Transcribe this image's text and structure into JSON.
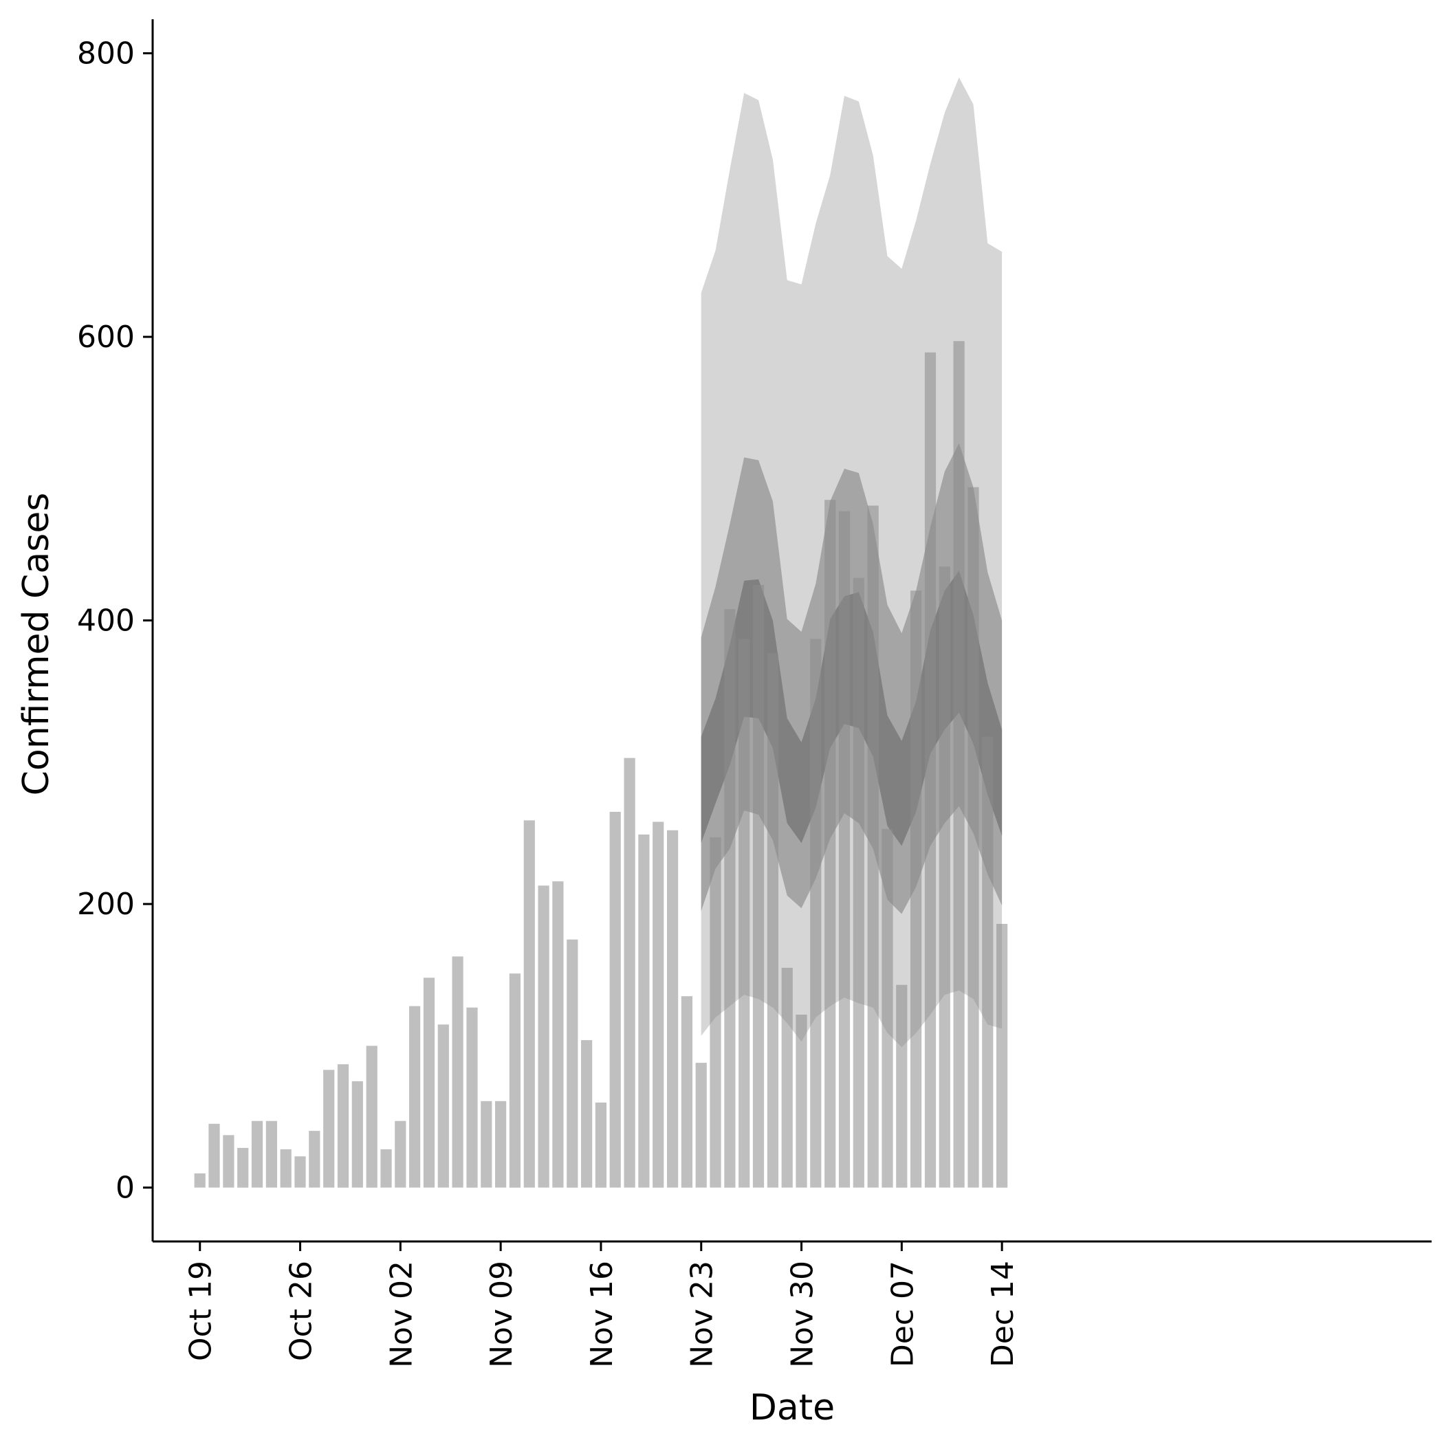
{
  "chart_data": {
    "type": "bar",
    "title": "",
    "xlabel": "Date",
    "ylabel": "Confirmed Cases",
    "ylim": [
      -38,
      824
    ],
    "yticks": [
      0,
      200,
      400,
      600,
      800
    ],
    "grid": false,
    "legend": "none",
    "x_start_date": "2020-10-19",
    "xlim_days": [
      -3.3,
      86
    ],
    "xticks": [
      {
        "label": "Oct 19",
        "date": "2020-10-19"
      },
      {
        "label": "Oct 26",
        "date": "2020-10-26"
      },
      {
        "label": "Nov 02",
        "date": "2020-11-02"
      },
      {
        "label": "Nov 09",
        "date": "2020-11-09"
      },
      {
        "label": "Nov 16",
        "date": "2020-11-16"
      },
      {
        "label": "Nov 23",
        "date": "2020-11-23"
      },
      {
        "label": "Nov 30",
        "date": "2020-11-30"
      },
      {
        "label": "Dec 07",
        "date": "2020-12-07"
      },
      {
        "label": "Dec 14",
        "date": "2020-12-14"
      }
    ],
    "series": [
      {
        "name": "",
        "kind": "bar",
        "color": "#bebebe",
        "start_date": "2020-10-19",
        "values": [
          10,
          45,
          37,
          28,
          47,
          47,
          27,
          22,
          40,
          83,
          87,
          75,
          100,
          27,
          47,
          128,
          148,
          115,
          163,
          127,
          61,
          61,
          151,
          259,
          213,
          216,
          175,
          104,
          60,
          265,
          303,
          249,
          258,
          252,
          135,
          88,
          247,
          408,
          387,
          425,
          377,
          155,
          122,
          387,
          485,
          477,
          430,
          481,
          253,
          143,
          421,
          589,
          438,
          597,
          494,
          318,
          186
        ]
      }
    ],
    "forecast": {
      "start_date": "2020-11-23",
      "colors": {
        "outer": "#d6d6d6",
        "middle": "#a5a5a5",
        "inner": "#808080"
      },
      "outer_lo": [
        107,
        120,
        128,
        136,
        133,
        127,
        116,
        103,
        120,
        128,
        134,
        130,
        127,
        109,
        99,
        109,
        122,
        136,
        139,
        133,
        115,
        112
      ],
      "outer_hi": [
        631,
        661,
        718,
        772,
        767,
        725,
        640,
        637,
        680,
        714,
        770,
        766,
        728,
        657,
        648,
        682,
        722,
        758,
        783,
        764,
        666,
        660
      ],
      "middle_lo": [
        195,
        225,
        239,
        266,
        263,
        245,
        206,
        197,
        218,
        246,
        264,
        257,
        239,
        203,
        193,
        212,
        241,
        257,
        269,
        250,
        221,
        199
      ],
      "middle_hi": [
        388,
        424,
        468,
        515,
        513,
        484,
        401,
        392,
        426,
        484,
        507,
        504,
        468,
        411,
        391,
        421,
        466,
        505,
        525,
        494,
        434,
        400
      ],
      "inner_lo": [
        243,
        271,
        298,
        332,
        331,
        310,
        257,
        243,
        268,
        310,
        327,
        324,
        304,
        255,
        241,
        265,
        306,
        323,
        335,
        313,
        277,
        248
      ],
      "inner_hi": [
        318,
        345,
        383,
        428,
        429,
        400,
        331,
        314,
        345,
        401,
        417,
        420,
        392,
        333,
        315,
        343,
        393,
        421,
        435,
        404,
        356,
        323
      ]
    }
  }
}
